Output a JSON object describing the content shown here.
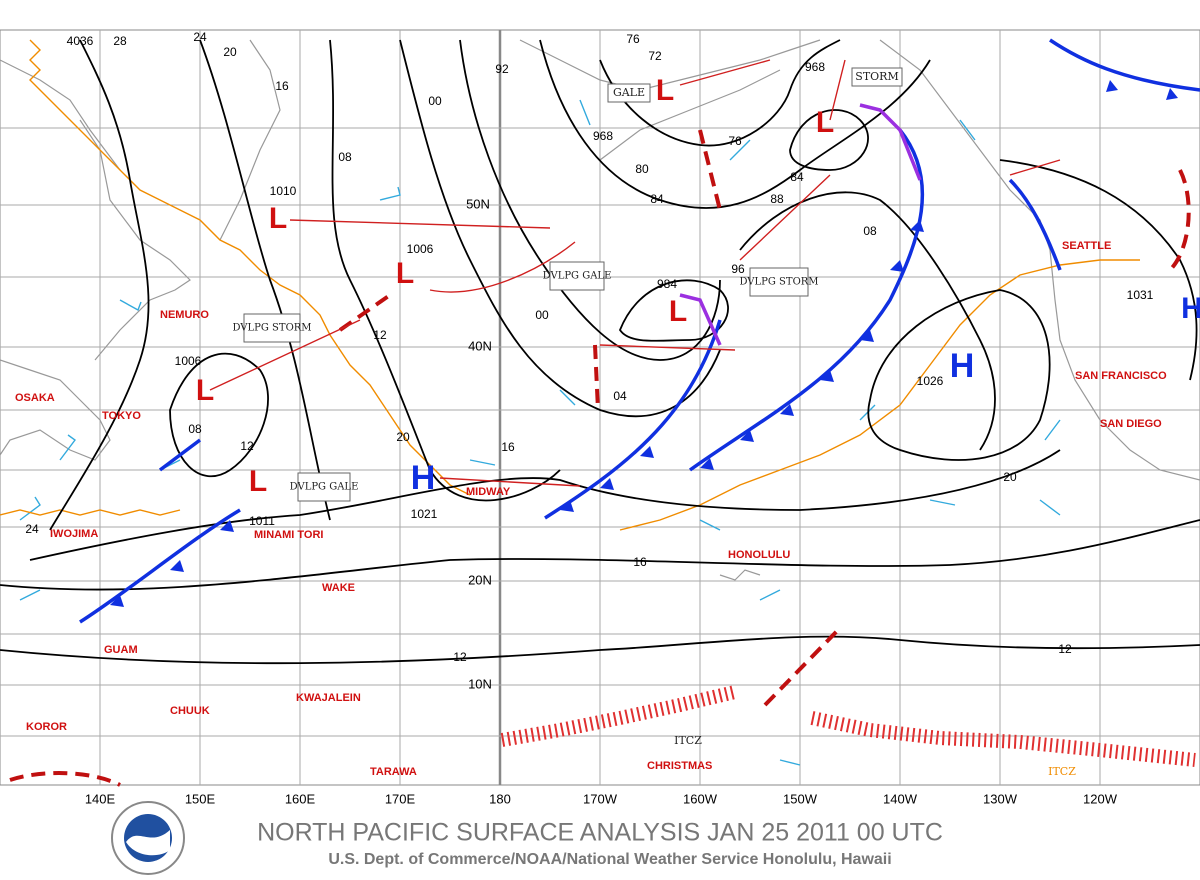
{
  "title": "NORTH PACIFIC SURFACE ANALYSIS JAN 25 2011 00 UTC",
  "subtitle": "U.S. Dept. of Commerce/NOAA/National Weather Service Honolulu, Hawaii",
  "longitude_labels": [
    "140E",
    "150E",
    "160E",
    "170E",
    "180",
    "170W",
    "160W",
    "150W",
    "140W",
    "130W",
    "120W"
  ],
  "latitude_labels": [
    "50N",
    "40N",
    "20N",
    "10N"
  ],
  "stations": [
    "NEMURO",
    "OSAKA",
    "TOKYO",
    "IWOJIMA",
    "MINAMI TORI",
    "WAKE",
    "GUAM",
    "CHUUK",
    "KWAJALEIN",
    "KOROR",
    "TARAWA",
    "MIDWAY",
    "HONOLULU",
    "CHRISTMAS",
    "SEATTLE",
    "SAN FRANCISCO",
    "SAN DIEGO"
  ],
  "high_centers": [
    "H",
    "H",
    "H"
  ],
  "low_symbol": "L",
  "central_pressures": [
    "1010",
    "1006",
    "1006",
    "1011",
    "1021",
    "968",
    "968",
    "984",
    "1026",
    "1031",
    "4036"
  ],
  "annotations": [
    "GALE",
    "STORM",
    "DVLPG GALE",
    "DVLPG STORM",
    "DVLPG STORM",
    "DVLPG GALE",
    "ITCZ",
    "ITCZ"
  ],
  "isobar_labels": [
    "28",
    "24",
    "20",
    "16",
    "12",
    "08",
    "04",
    "00",
    "92",
    "96",
    "88",
    "84",
    "80",
    "76",
    "72",
    "16",
    "20",
    "24",
    "12",
    "08",
    "00",
    "16",
    "20",
    "12",
    "12",
    "08",
    "84",
    "76"
  ]
}
